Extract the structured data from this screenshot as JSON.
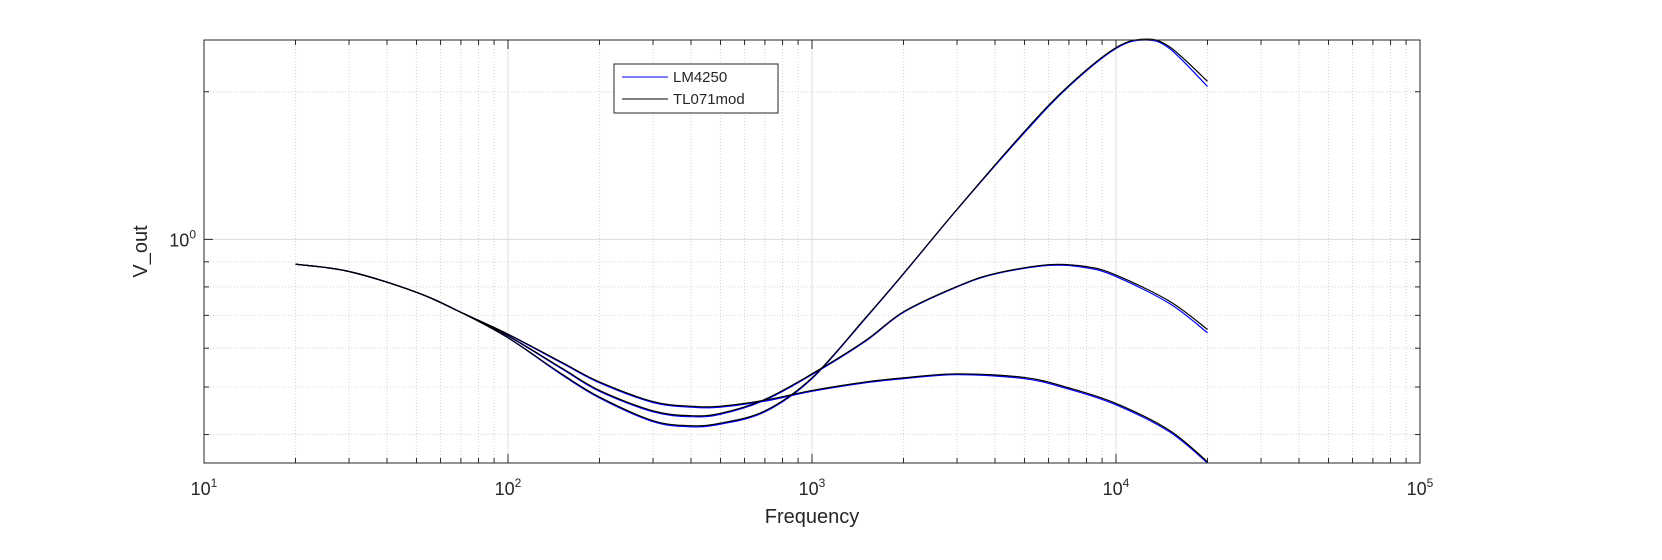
{
  "chart_data": {
    "type": "line",
    "title": "",
    "xlabel": "Frequency",
    "ylabel": "V_out",
    "xscale": "log",
    "yscale": "log",
    "xlim": [
      10,
      100000
    ],
    "ylim": [
      0.35,
      2.55
    ],
    "grid": true,
    "minor_grid": true,
    "legend_placement": "top-center",
    "x_ticks": [
      {
        "value": 10,
        "base": "10",
        "exp": "1"
      },
      {
        "value": 100,
        "base": "10",
        "exp": "2"
      },
      {
        "value": 1000,
        "base": "10",
        "exp": "3"
      },
      {
        "value": 10000,
        "base": "10",
        "exp": "4"
      },
      {
        "value": 100000,
        "base": "10",
        "exp": "5"
      }
    ],
    "y_ticks": [
      {
        "value": 1,
        "base": "10",
        "exp": "0"
      }
    ],
    "series": [
      {
        "name": "LM4250",
        "color": "#0000ff",
        "curves": [
          {
            "x": [
              20,
              30,
              50,
              70,
              100,
              150,
              200,
              300,
              400,
              500,
              700,
              1000,
              1500,
              2000,
              3000,
              5000,
              7000,
              10000,
              12500,
              15000,
              20000
            ],
            "y": [
              0.89,
              0.86,
              0.78,
              0.71,
              0.63,
              0.53,
              0.475,
              0.425,
              0.415,
              0.42,
              0.445,
              0.52,
              0.69,
              0.85,
              1.15,
              1.65,
              2.05,
              2.45,
              2.55,
              2.45,
              2.05
            ]
          },
          {
            "x": [
              20,
              30,
              50,
              70,
              100,
              150,
              200,
              300,
              400,
              500,
              700,
              1000,
              1500,
              2000,
              3000,
              4000,
              6000,
              8000,
              10000,
              15000,
              20000
            ],
            "y": [
              0.89,
              0.86,
              0.78,
              0.71,
              0.635,
              0.545,
              0.49,
              0.445,
              0.435,
              0.44,
              0.47,
              0.53,
              0.62,
              0.71,
              0.8,
              0.85,
              0.885,
              0.875,
              0.84,
              0.74,
              0.645
            ]
          },
          {
            "x": [
              20,
              30,
              50,
              70,
              100,
              150,
              200,
              300,
              400,
              500,
              700,
              1000,
              1500,
              2000,
              3000,
              5000,
              7000,
              10000,
              15000,
              20000
            ],
            "y": [
              0.89,
              0.86,
              0.78,
              0.71,
              0.64,
              0.56,
              0.51,
              0.465,
              0.455,
              0.455,
              0.468,
              0.49,
              0.51,
              0.52,
              0.53,
              0.52,
              0.495,
              0.46,
              0.405,
              0.35
            ]
          }
        ]
      },
      {
        "name": "TL071mod",
        "color": "#000000",
        "curves": [
          {
            "x": [
              20,
              30,
              50,
              70,
              100,
              150,
              200,
              300,
              400,
              500,
              700,
              1000,
              1500,
              2000,
              3000,
              5000,
              7000,
              10000,
              12500,
              15000,
              20000
            ],
            "y": [
              0.89,
              0.86,
              0.78,
              0.71,
              0.63,
              0.532,
              0.477,
              0.427,
              0.417,
              0.422,
              0.447,
              0.522,
              0.692,
              0.852,
              1.152,
              1.66,
              2.06,
              2.46,
              2.56,
              2.47,
              2.1
            ]
          },
          {
            "x": [
              20,
              30,
              50,
              70,
              100,
              150,
              200,
              300,
              400,
              500,
              700,
              1000,
              1500,
              2000,
              3000,
              4000,
              6000,
              8000,
              10000,
              15000,
              20000
            ],
            "y": [
              0.89,
              0.86,
              0.78,
              0.71,
              0.636,
              0.547,
              0.492,
              0.447,
              0.437,
              0.442,
              0.472,
              0.532,
              0.622,
              0.712,
              0.802,
              0.852,
              0.888,
              0.88,
              0.846,
              0.748,
              0.655
            ]
          },
          {
            "x": [
              20,
              30,
              50,
              70,
              100,
              150,
              200,
              300,
              400,
              500,
              700,
              1000,
              1500,
              2000,
              3000,
              5000,
              7000,
              10000,
              15000,
              20000
            ],
            "y": [
              0.89,
              0.86,
              0.78,
              0.71,
              0.641,
              0.562,
              0.512,
              0.467,
              0.457,
              0.457,
              0.47,
              0.492,
              0.512,
              0.522,
              0.532,
              0.523,
              0.498,
              0.463,
              0.408,
              0.352
            ]
          }
        ]
      }
    ]
  }
}
